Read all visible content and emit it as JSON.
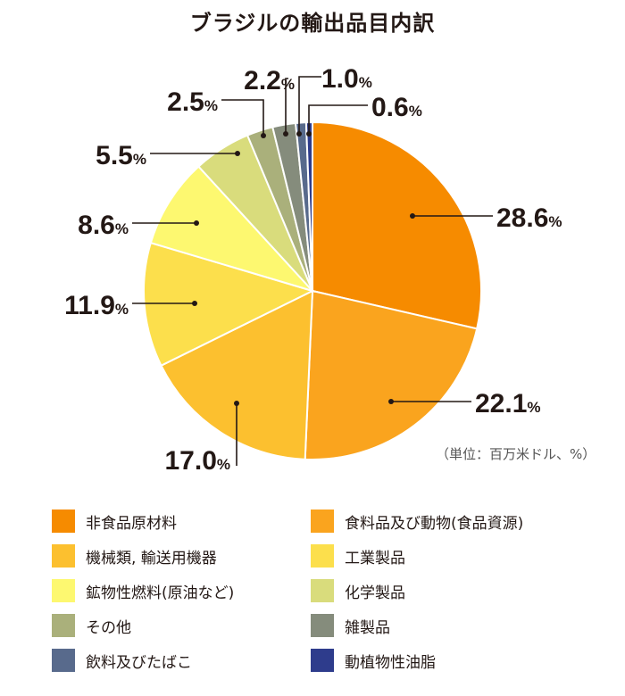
{
  "chart_data": {
    "type": "pie",
    "title": "ブラジルの輸出品目内訳",
    "unit_note": "（単位：百万米ドル、%）",
    "percent_symbol": "%",
    "slices": [
      {
        "label": "非食品原材料",
        "value": 28.6,
        "value_label": "28.6",
        "color": "#F68B00"
      },
      {
        "label": "食料品及び動物(食品資源)",
        "value": 22.1,
        "value_label": "22.1",
        "color": "#FAA41E"
      },
      {
        "label": "機械類, 輸送用機器",
        "value": 17.0,
        "value_label": "17.0",
        "color": "#FCC02F"
      },
      {
        "label": "工業製品",
        "value": 11.9,
        "value_label": "11.9",
        "color": "#FCDF4C"
      },
      {
        "label": "鉱物性燃料(原油など)",
        "value": 8.6,
        "value_label": "8.6",
        "color": "#FDF870"
      },
      {
        "label": "化学製品",
        "value": 5.5,
        "value_label": "5.5",
        "color": "#D9DC7C"
      },
      {
        "label": "その他",
        "value": 2.5,
        "value_label": "2.5",
        "color": "#AAB07B"
      },
      {
        "label": "雑製品",
        "value": 2.2,
        "value_label": "2.2",
        "color": "#858C7C"
      },
      {
        "label": "飲料及びたばこ",
        "value": 1.0,
        "value_label": "1.0",
        "color": "#586A8C"
      },
      {
        "label": "動植物性油脂",
        "value": 0.6,
        "value_label": "0.6",
        "color": "#2E3C8C"
      }
    ]
  }
}
